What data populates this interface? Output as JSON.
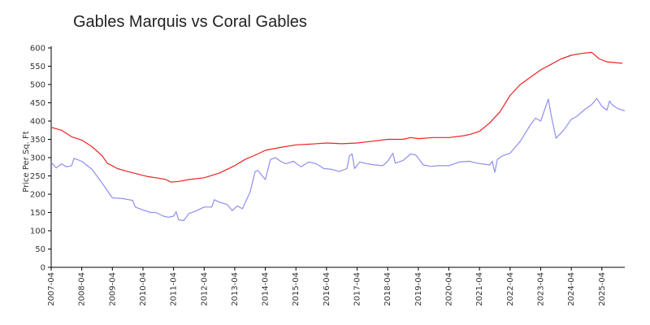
{
  "chart_data": {
    "type": "line",
    "title": "Gables Marquis vs Coral Gables",
    "xlabel": "",
    "ylabel": "Price Per Sq. Ft",
    "ylim": [
      0,
      600
    ],
    "yticks": [
      0,
      50,
      100,
      150,
      200,
      250,
      300,
      350,
      400,
      450,
      500,
      550,
      600
    ],
    "xlim": [
      "2007-04",
      "2026-01"
    ],
    "xticks": [
      "2007-04",
      "2008-04",
      "2009-04",
      "2010-04",
      "2011-04",
      "2012-04",
      "2013-04",
      "2014-04",
      "2015-04",
      "2016-04",
      "2017-04",
      "2018-04",
      "2019-04",
      "2020-04",
      "2021-04",
      "2022-04",
      "2023-04",
      "2024-04",
      "2025-04"
    ],
    "grid": false,
    "legend": "none",
    "series": [
      {
        "color": "#ee2222",
        "points": [
          [
            "2007-04",
            383
          ],
          [
            "2007-08",
            375
          ],
          [
            "2007-12",
            357
          ],
          [
            "2008-04",
            348
          ],
          [
            "2008-08",
            330
          ],
          [
            "2008-12",
            305
          ],
          [
            "2009-02",
            285
          ],
          [
            "2009-06",
            270
          ],
          [
            "2009-10",
            262
          ],
          [
            "2010-02",
            255
          ],
          [
            "2010-06",
            248
          ],
          [
            "2010-10",
            244
          ],
          [
            "2011-01",
            240
          ],
          [
            "2011-03",
            233
          ],
          [
            "2011-06",
            235
          ],
          [
            "2011-10",
            240
          ],
          [
            "2012-04",
            245
          ],
          [
            "2012-10",
            258
          ],
          [
            "2013-04",
            278
          ],
          [
            "2013-08",
            295
          ],
          [
            "2014-01",
            310
          ],
          [
            "2014-04",
            320
          ],
          [
            "2014-10",
            328
          ],
          [
            "2015-04",
            335
          ],
          [
            "2015-10",
            337
          ],
          [
            "2016-04",
            340
          ],
          [
            "2016-10",
            338
          ],
          [
            "2017-04",
            340
          ],
          [
            "2017-10",
            345
          ],
          [
            "2018-04",
            350
          ],
          [
            "2018-10",
            350
          ],
          [
            "2019-01",
            355
          ],
          [
            "2019-04",
            352
          ],
          [
            "2019-10",
            355
          ],
          [
            "2020-04",
            355
          ],
          [
            "2020-10",
            360
          ],
          [
            "2021-01",
            365
          ],
          [
            "2021-04",
            372
          ],
          [
            "2021-08",
            395
          ],
          [
            "2021-12",
            425
          ],
          [
            "2022-04",
            470
          ],
          [
            "2022-08",
            500
          ],
          [
            "2022-12",
            520
          ],
          [
            "2023-04",
            540
          ],
          [
            "2023-08",
            555
          ],
          [
            "2023-12",
            570
          ],
          [
            "2024-04",
            580
          ],
          [
            "2024-08",
            585
          ],
          [
            "2024-12",
            588
          ],
          [
            "2025-03",
            570
          ],
          [
            "2025-06",
            562
          ],
          [
            "2025-09",
            560
          ],
          [
            "2025-12",
            558
          ]
        ]
      },
      {
        "color": "#8f8fef",
        "points": [
          [
            "2007-04",
            287
          ],
          [
            "2007-06",
            272
          ],
          [
            "2007-08",
            283
          ],
          [
            "2007-10",
            275
          ],
          [
            "2007-12",
            278
          ],
          [
            "2008-01",
            298
          ],
          [
            "2008-04",
            290
          ],
          [
            "2008-08",
            268
          ],
          [
            "2008-12",
            230
          ],
          [
            "2009-02",
            210
          ],
          [
            "2009-04",
            190
          ],
          [
            "2009-08",
            188
          ],
          [
            "2009-12",
            183
          ],
          [
            "2010-01",
            165
          ],
          [
            "2010-04",
            157
          ],
          [
            "2010-07",
            150
          ],
          [
            "2010-09",
            150
          ],
          [
            "2010-12",
            140
          ],
          [
            "2011-02",
            137
          ],
          [
            "2011-04",
            140
          ],
          [
            "2011-05",
            152
          ],
          [
            "2011-06",
            130
          ],
          [
            "2011-08",
            128
          ],
          [
            "2011-10",
            147
          ],
          [
            "2012-01",
            155
          ],
          [
            "2012-04",
            165
          ],
          [
            "2012-07",
            165
          ],
          [
            "2012-08",
            185
          ],
          [
            "2012-10",
            178
          ],
          [
            "2013-01",
            172
          ],
          [
            "2013-03",
            155
          ],
          [
            "2013-05",
            168
          ],
          [
            "2013-07",
            160
          ],
          [
            "2013-10",
            205
          ],
          [
            "2013-12",
            262
          ],
          [
            "2014-01",
            265
          ],
          [
            "2014-04",
            240
          ],
          [
            "2014-06",
            295
          ],
          [
            "2014-08",
            300
          ],
          [
            "2014-10",
            290
          ],
          [
            "2014-12",
            283
          ],
          [
            "2015-03",
            290
          ],
          [
            "2015-06",
            275
          ],
          [
            "2015-09",
            288
          ],
          [
            "2015-12",
            283
          ],
          [
            "2016-03",
            270
          ],
          [
            "2016-06",
            268
          ],
          [
            "2016-09",
            262
          ],
          [
            "2016-12",
            270
          ],
          [
            "2017-01",
            305
          ],
          [
            "2017-02",
            310
          ],
          [
            "2017-03",
            270
          ],
          [
            "2017-05",
            288
          ],
          [
            "2017-08",
            283
          ],
          [
            "2017-11",
            280
          ],
          [
            "2018-02",
            278
          ],
          [
            "2018-04",
            290
          ],
          [
            "2018-06",
            312
          ],
          [
            "2018-07",
            285
          ],
          [
            "2018-10",
            292
          ],
          [
            "2019-01",
            310
          ],
          [
            "2019-03",
            307
          ],
          [
            "2019-06",
            280
          ],
          [
            "2019-09",
            276
          ],
          [
            "2019-12",
            278
          ],
          [
            "2020-04",
            278
          ],
          [
            "2020-08",
            288
          ],
          [
            "2020-12",
            290
          ],
          [
            "2021-03",
            285
          ],
          [
            "2021-06",
            282
          ],
          [
            "2021-08",
            280
          ],
          [
            "2021-09",
            290
          ],
          [
            "2021-10",
            260
          ],
          [
            "2021-11",
            295
          ],
          [
            "2022-01",
            305
          ],
          [
            "2022-04",
            312
          ],
          [
            "2022-08",
            345
          ],
          [
            "2022-12",
            390
          ],
          [
            "2023-02",
            408
          ],
          [
            "2023-04",
            400
          ],
          [
            "2023-06",
            440
          ],
          [
            "2023-07",
            460
          ],
          [
            "2023-08",
            420
          ],
          [
            "2023-10",
            353
          ],
          [
            "2024-01",
            375
          ],
          [
            "2024-04",
            405
          ],
          [
            "2024-06",
            412
          ],
          [
            "2024-09",
            430
          ],
          [
            "2024-12",
            445
          ],
          [
            "2025-02",
            462
          ],
          [
            "2025-04",
            440
          ],
          [
            "2025-06",
            430
          ],
          [
            "2025-07",
            455
          ],
          [
            "2025-08",
            445
          ],
          [
            "2025-10",
            435
          ],
          [
            "2025-12",
            430
          ],
          [
            "2026-01",
            428
          ]
        ]
      }
    ]
  }
}
